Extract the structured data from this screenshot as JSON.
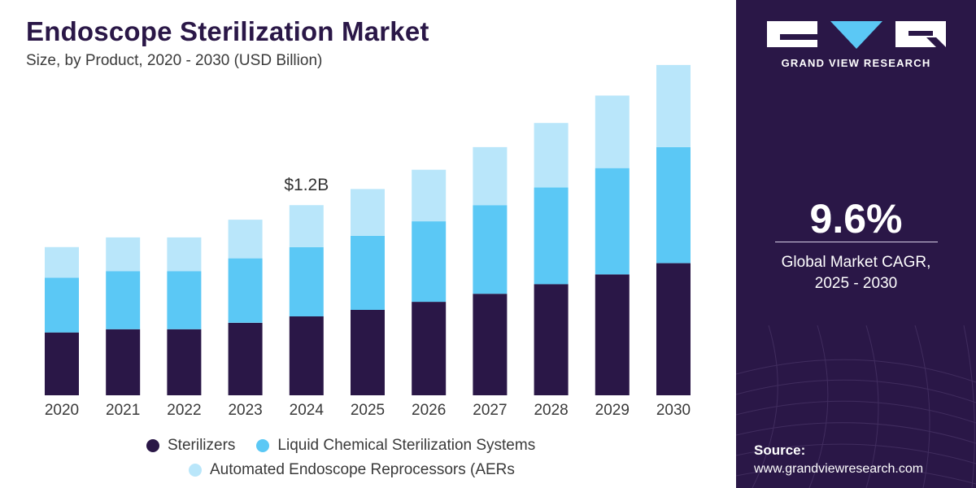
{
  "header": {
    "title": "Endoscope Sterilization Market",
    "subtitle": "Size, by Product, 2020 - 2030 (USD Billion)"
  },
  "colors": {
    "sterilizers": "#2a1747",
    "liquid": "#5bc8f5",
    "aers": "#b9e6fa",
    "panel": "#2a1747"
  },
  "chart_data": {
    "type": "bar",
    "stacked": true,
    "categories": [
      "2020",
      "2021",
      "2022",
      "2023",
      "2024",
      "2025",
      "2026",
      "2027",
      "2028",
      "2029",
      "2030"
    ],
    "series": [
      {
        "name": "Sterilizers",
        "values": [
          0.39,
          0.41,
          0.41,
          0.45,
          0.49,
          0.53,
          0.58,
          0.63,
          0.69,
          0.75,
          0.82
        ]
      },
      {
        "name": "Liquid Chemical Sterilization Systems",
        "values": [
          0.34,
          0.36,
          0.36,
          0.4,
          0.43,
          0.46,
          0.5,
          0.55,
          0.6,
          0.66,
          0.72
        ]
      },
      {
        "name": "Automated Endoscope Reprocessors (AERs",
        "values": [
          0.19,
          0.21,
          0.21,
          0.24,
          0.26,
          0.29,
          0.32,
          0.36,
          0.4,
          0.45,
          0.51
        ]
      }
    ],
    "annotations": [
      {
        "category": "2024",
        "text": "$1.2B"
      }
    ],
    "ylim": [
      0,
      2.1
    ],
    "grid": false,
    "legend_position": "bottom"
  },
  "panel": {
    "brand": "GRAND VIEW RESEARCH",
    "cagr_value": "9.6%",
    "cagr_label_line1": "Global Market CAGR,",
    "cagr_label_line2": "2025 - 2030",
    "source_label": "Source:",
    "source_url": "www.grandviewresearch.com"
  }
}
